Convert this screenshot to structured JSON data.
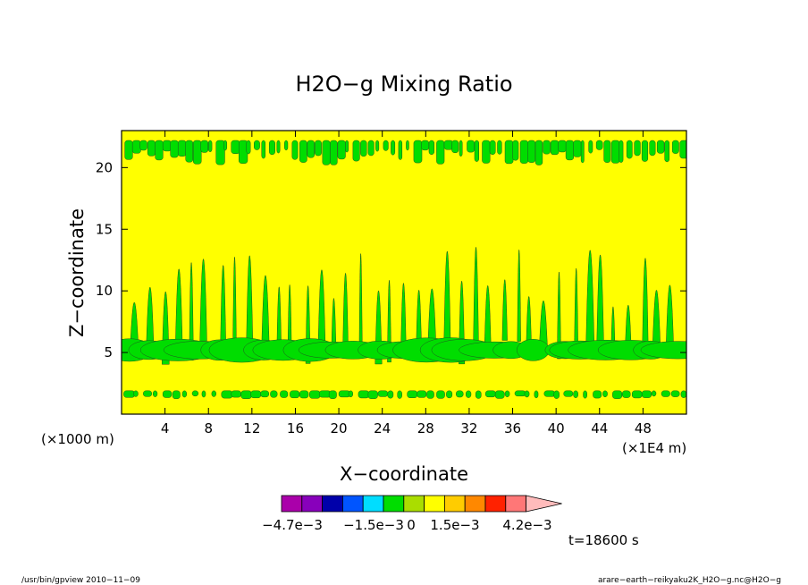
{
  "chart_data": {
    "type": "heatmap",
    "title": "H2O−g Mixing Ratio",
    "xlabel": "X−coordinate",
    "ylabel": "Z−coordinate",
    "x_unit_label": "(×1E4 m)",
    "y_unit_label": "(×1000 m)",
    "xlim": [
      0,
      52
    ],
    "ylim": [
      0,
      23
    ],
    "x_ticks": [
      "4",
      "8",
      "12",
      "16",
      "20",
      "24",
      "28",
      "32",
      "36",
      "40",
      "44",
      "48"
    ],
    "y_ticks": [
      "5",
      "10",
      "15",
      "20"
    ],
    "background_level_color": "#ffff00",
    "feature_color": "#00dd00",
    "colorbar": {
      "colors": [
        "#aa00aa",
        "#8800bb",
        "#0000aa",
        "#0055ff",
        "#00ddff",
        "#00dd00",
        "#aadd00",
        "#ffff00",
        "#ffcc00",
        "#ff8800",
        "#ff2200",
        "#ff7777",
        "#ffbbbb"
      ],
      "tick_labels": [
        "−4.7e−3",
        "−1.5e−3",
        "0",
        "1.5e−3",
        "4.2e−3"
      ]
    },
    "time_label": "t=18600 s"
  },
  "footer": {
    "left": "/usr/bin/gpview   2010−11−09",
    "right": "arare−earth−reikyaku2K_H2O−g.nc@H2O−g"
  }
}
